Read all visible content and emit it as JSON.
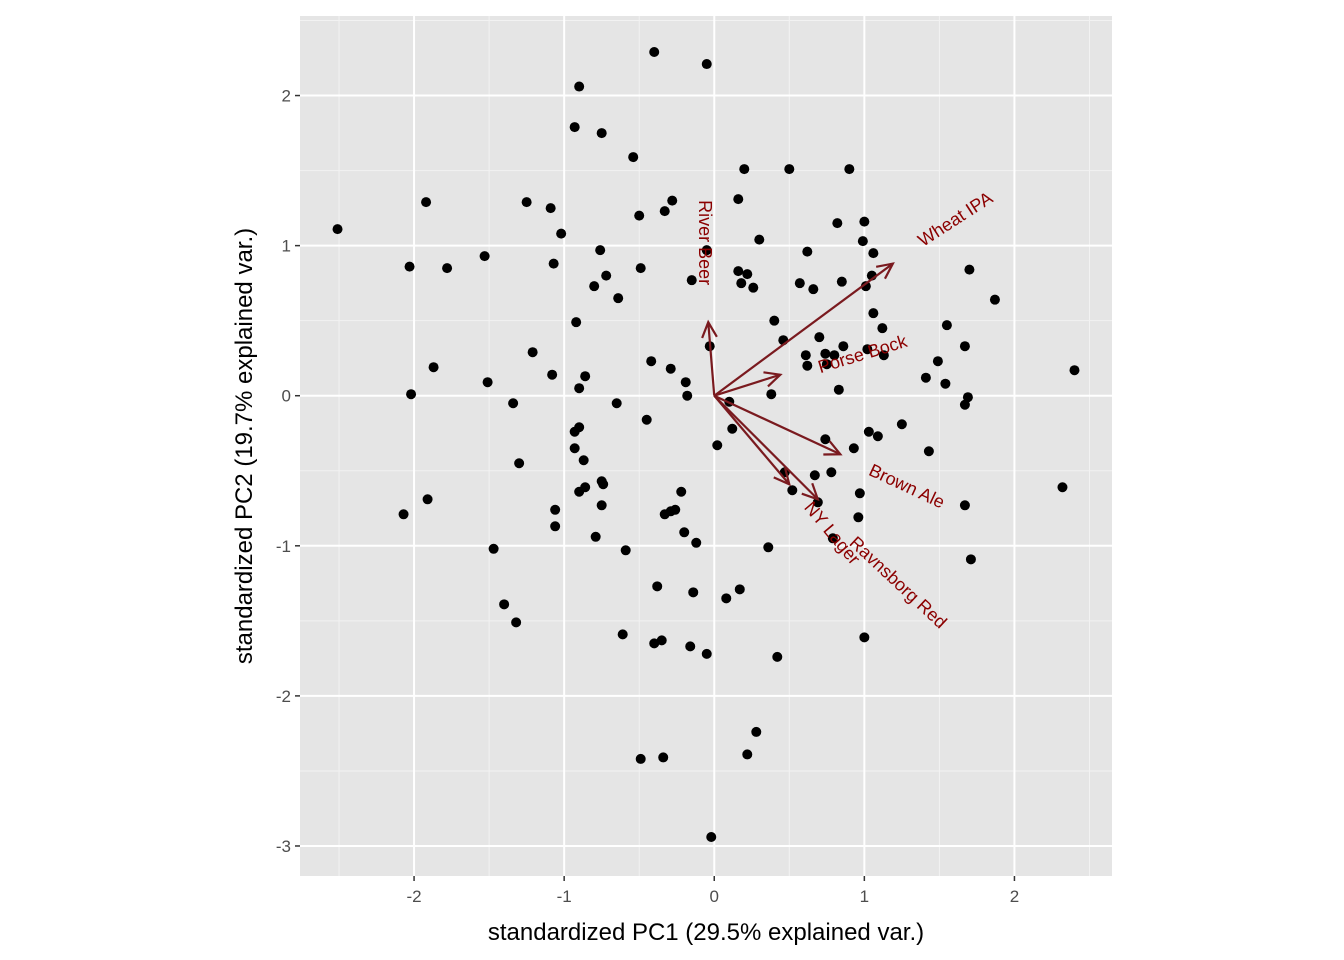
{
  "chart_data": {
    "type": "scatter",
    "subtype": "pca-biplot",
    "xlabel": "standardized PC1 (29.5% explained var.)",
    "ylabel": "standardized PC2 (19.7% explained var.)",
    "xlim": [
      -2.76,
      2.65
    ],
    "ylim": [
      -3.2,
      2.53
    ],
    "xticks": [
      -2,
      -1,
      0,
      1,
      2
    ],
    "yticks": [
      -3,
      -2,
      -1,
      0,
      1,
      2
    ],
    "grid": true,
    "colors": {
      "panel": "#e5e5e5",
      "grid": "#ffffff",
      "points": "#000000",
      "arrows": "#7a1a1f",
      "arrow_labels": "#8b0000"
    },
    "points": [
      [
        -2.51,
        1.11
      ],
      [
        -0.4,
        2.29
      ],
      [
        -0.05,
        2.21
      ],
      [
        -0.9,
        2.06
      ],
      [
        -0.93,
        1.79
      ],
      [
        -0.75,
        1.75
      ],
      [
        -0.54,
        1.59
      ],
      [
        0.2,
        1.51
      ],
      [
        0.5,
        1.51
      ],
      [
        0.9,
        1.51
      ],
      [
        -1.92,
        1.29
      ],
      [
        -1.25,
        1.29
      ],
      [
        -1.09,
        1.25
      ],
      [
        -0.28,
        1.3
      ],
      [
        -0.5,
        1.2
      ],
      [
        -0.33,
        1.23
      ],
      [
        0.16,
        1.31
      ],
      [
        0.82,
        1.15
      ],
      [
        1.0,
        1.16
      ],
      [
        -1.02,
        1.08
      ],
      [
        0.3,
        1.04
      ],
      [
        0.99,
        1.03
      ],
      [
        -2.03,
        0.86
      ],
      [
        -1.78,
        0.85
      ],
      [
        -1.53,
        0.93
      ],
      [
        -1.07,
        0.88
      ],
      [
        -0.76,
        0.97
      ],
      [
        -0.49,
        0.85
      ],
      [
        -0.05,
        0.97
      ],
      [
        -0.72,
        0.8
      ],
      [
        -0.8,
        0.73
      ],
      [
        -0.64,
        0.65
      ],
      [
        -0.15,
        0.77
      ],
      [
        0.16,
        0.83
      ],
      [
        0.22,
        0.81
      ],
      [
        0.18,
        0.75
      ],
      [
        0.26,
        0.72
      ],
      [
        0.62,
        0.96
      ],
      [
        0.57,
        0.75
      ],
      [
        0.66,
        0.71
      ],
      [
        0.85,
        0.76
      ],
      [
        1.06,
        0.95
      ],
      [
        1.05,
        0.8
      ],
      [
        1.01,
        0.73
      ],
      [
        1.7,
        0.84
      ],
      [
        1.87,
        0.64
      ],
      [
        1.06,
        0.55
      ],
      [
        1.12,
        0.45
      ],
      [
        1.55,
        0.47
      ],
      [
        1.67,
        0.33
      ],
      [
        -0.92,
        0.49
      ],
      [
        0.4,
        0.5
      ],
      [
        0.46,
        0.37
      ],
      [
        0.7,
        0.39
      ],
      [
        -0.03,
        0.33
      ],
      [
        -1.21,
        0.29
      ],
      [
        -1.87,
        0.19
      ],
      [
        -1.08,
        0.14
      ],
      [
        -0.86,
        0.13
      ],
      [
        -0.9,
        0.05
      ],
      [
        -1.51,
        0.09
      ],
      [
        -0.42,
        0.23
      ],
      [
        -0.29,
        0.18
      ],
      [
        -0.19,
        0.09
      ],
      [
        -0.18,
        0.0
      ],
      [
        0.61,
        0.27
      ],
      [
        0.62,
        0.2
      ],
      [
        0.74,
        0.28
      ],
      [
        0.8,
        0.27
      ],
      [
        0.86,
        0.33
      ],
      [
        0.75,
        0.21
      ],
      [
        1.02,
        0.31
      ],
      [
        1.13,
        0.27
      ],
      [
        0.83,
        0.04
      ],
      [
        0.38,
        0.01
      ],
      [
        1.41,
        0.12
      ],
      [
        1.49,
        0.23
      ],
      [
        1.54,
        0.08
      ],
      [
        1.69,
        -0.01
      ],
      [
        1.67,
        -0.06
      ],
      [
        2.4,
        0.17
      ],
      [
        -2.02,
        0.01
      ],
      [
        -1.34,
        -0.05
      ],
      [
        -0.65,
        -0.05
      ],
      [
        0.1,
        -0.04
      ],
      [
        -0.45,
        -0.16
      ],
      [
        0.12,
        -0.22
      ],
      [
        0.02,
        -0.33
      ],
      [
        -0.93,
        -0.24
      ],
      [
        -0.9,
        -0.21
      ],
      [
        -0.93,
        -0.35
      ],
      [
        -0.87,
        -0.43
      ],
      [
        -1.3,
        -0.45
      ],
      [
        0.74,
        -0.29
      ],
      [
        0.93,
        -0.35
      ],
      [
        1.03,
        -0.24
      ],
      [
        1.09,
        -0.27
      ],
      [
        1.25,
        -0.19
      ],
      [
        1.43,
        -0.37
      ],
      [
        0.47,
        -0.51
      ],
      [
        0.67,
        -0.53
      ],
      [
        0.78,
        -0.51
      ],
      [
        -2.07,
        -0.79
      ],
      [
        -1.91,
        -0.69
      ],
      [
        -1.06,
        -0.76
      ],
      [
        -1.06,
        -0.87
      ],
      [
        -0.9,
        -0.64
      ],
      [
        -0.86,
        -0.61
      ],
      [
        -0.75,
        -0.57
      ],
      [
        -0.74,
        -0.59
      ],
      [
        -0.75,
        -0.73
      ],
      [
        -0.79,
        -0.94
      ],
      [
        -0.59,
        -1.03
      ],
      [
        -0.22,
        -0.64
      ],
      [
        -0.33,
        -0.79
      ],
      [
        -0.29,
        -0.77
      ],
      [
        -0.26,
        -0.76
      ],
      [
        -0.2,
        -0.91
      ],
      [
        -0.12,
        -0.98
      ],
      [
        0.52,
        -0.63
      ],
      [
        0.69,
        -0.71
      ],
      [
        0.97,
        -0.65
      ],
      [
        0.96,
        -0.81
      ],
      [
        1.67,
        -0.73
      ],
      [
        0.79,
        -0.95
      ],
      [
        0.36,
        -1.01
      ],
      [
        1.71,
        -1.09
      ],
      [
        2.32,
        -0.61
      ],
      [
        -1.47,
        -1.02
      ],
      [
        -0.38,
        -1.27
      ],
      [
        -0.14,
        -1.31
      ],
      [
        0.08,
        -1.35
      ],
      [
        0.17,
        -1.29
      ],
      [
        -1.4,
        -1.39
      ],
      [
        -1.32,
        -1.51
      ],
      [
        -0.61,
        -1.59
      ],
      [
        -0.4,
        -1.65
      ],
      [
        -0.35,
        -1.63
      ],
      [
        -0.16,
        -1.67
      ],
      [
        -0.05,
        -1.72
      ],
      [
        0.42,
        -1.74
      ],
      [
        1.0,
        -1.61
      ],
      [
        0.28,
        -2.24
      ],
      [
        0.22,
        -2.39
      ],
      [
        -0.49,
        -2.42
      ],
      [
        -0.34,
        -2.41
      ],
      [
        -0.02,
        -2.94
      ]
    ],
    "loadings": [
      {
        "label": "River Beer",
        "x": -0.04,
        "y": 0.49,
        "label_x": -0.07,
        "label_y": 1.02,
        "angle": 90
      },
      {
        "label": "Wheat IPA",
        "x": 1.19,
        "y": 0.88,
        "label_x": 1.61,
        "label_y": 1.17,
        "angle": -33
      },
      {
        "label": "Porse Bock",
        "x": 0.44,
        "y": 0.14,
        "label_x": 0.99,
        "label_y": 0.27,
        "angle": -17
      },
      {
        "label": "Brown Ale",
        "x": 0.84,
        "y": -0.39,
        "label_x": 1.28,
        "label_y": -0.61,
        "angle": 25
      },
      {
        "label": "NY Lager",
        "x": 0.5,
        "y": -0.59,
        "label_x": 0.78,
        "label_y": -0.92,
        "angle": 50
      },
      {
        "label": "Ravnsborg Red",
        "x": 0.69,
        "y": -0.69,
        "label_x": 1.22,
        "label_y": -1.25,
        "angle": 43
      }
    ]
  }
}
